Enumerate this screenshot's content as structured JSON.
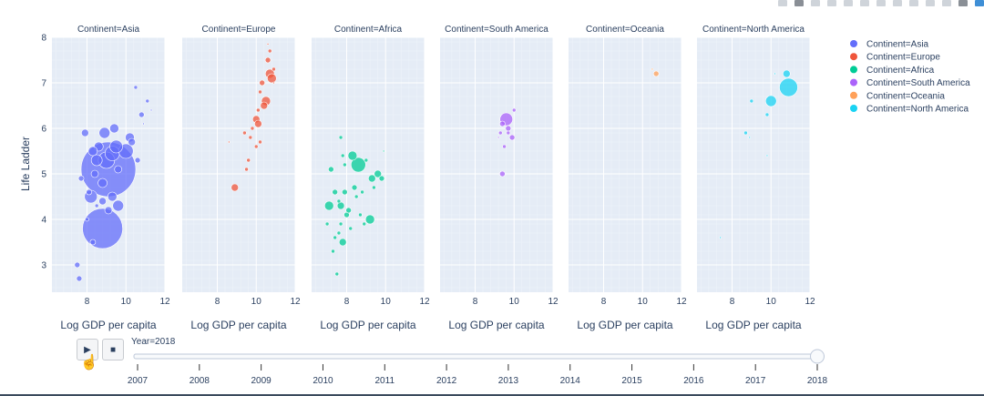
{
  "modebar": {
    "icons": [
      "camera-icon",
      "zoom-icon",
      "pan-icon",
      "select-icon",
      "lasso-icon",
      "zoom-in-icon",
      "zoom-out-icon",
      "autoscale-icon",
      "reset-icon",
      "spike-icon",
      "hover-closest-icon",
      "hover-compare-icon",
      "plotly-logo-icon"
    ]
  },
  "player": {
    "play_label": "▶",
    "stop_label": "■",
    "current_label": "Year=2018"
  },
  "chart_data": {
    "type": "scatter",
    "subtype": "faceted-bubble",
    "xlabel": "Log GDP per capita",
    "ylabel": "Life Ladder",
    "xlim": [
      6.2,
      12
    ],
    "ylim": [
      2.4,
      8
    ],
    "xticks": [
      8,
      10,
      12
    ],
    "yticks": [
      3,
      4,
      5,
      6,
      7,
      8
    ],
    "legend_position": "right",
    "grid": true,
    "facets": [
      {
        "name": "Asia",
        "title": "Continent=Asia",
        "color": "#636efa",
        "points": [
          [
            9.1,
            5.1,
            30
          ],
          [
            8.8,
            3.8,
            22
          ],
          [
            8.2,
            4.5,
            7
          ],
          [
            8.5,
            5.3,
            6
          ],
          [
            9.0,
            5.3,
            9
          ],
          [
            9.3,
            5.45,
            8
          ],
          [
            9.5,
            5.6,
            7
          ],
          [
            10.0,
            5.5,
            8
          ],
          [
            8.6,
            5.6,
            5
          ],
          [
            8.9,
            5.9,
            6
          ],
          [
            9.4,
            6.0,
            5
          ],
          [
            10.2,
            5.8,
            5
          ],
          [
            7.9,
            5.9,
            4
          ],
          [
            8.3,
            5.5,
            5
          ],
          [
            8.4,
            5.0,
            4
          ],
          [
            8.8,
            4.8,
            5
          ],
          [
            9.3,
            4.5,
            5
          ],
          [
            9.6,
            4.3,
            6
          ],
          [
            9.1,
            4.2,
            4
          ],
          [
            8.1,
            4.6,
            3
          ],
          [
            7.7,
            4.9,
            3
          ],
          [
            8.8,
            4.4,
            4
          ],
          [
            10.8,
            6.3,
            3
          ],
          [
            11.1,
            6.6,
            2
          ],
          [
            10.5,
            6.9,
            2
          ],
          [
            10.3,
            5.7,
            4
          ],
          [
            10.6,
            5.3,
            3
          ],
          [
            8.3,
            3.5,
            3
          ],
          [
            7.5,
            3.0,
            3
          ],
          [
            7.6,
            2.7,
            3
          ],
          [
            9.6,
            5.1,
            4
          ],
          [
            8.0,
            4.0,
            2
          ],
          [
            8.5,
            4.3,
            2
          ],
          [
            11.3,
            6.4,
            1
          ],
          [
            10.9,
            6.1,
            1
          ]
        ]
      },
      {
        "name": "Europe",
        "title": "Continent=Europe",
        "color": "#ef553b",
        "points": [
          [
            10.7,
            7.2,
            5
          ],
          [
            10.8,
            7.1,
            5
          ],
          [
            10.5,
            6.6,
            5
          ],
          [
            10.4,
            6.5,
            4
          ],
          [
            10.0,
            6.2,
            4
          ],
          [
            10.1,
            6.1,
            4
          ],
          [
            10.3,
            7.0,
            3
          ],
          [
            10.6,
            7.5,
            3
          ],
          [
            10.7,
            7.7,
            2
          ],
          [
            10.9,
            7.3,
            2
          ],
          [
            10.2,
            6.8,
            2
          ],
          [
            9.8,
            6.0,
            2
          ],
          [
            9.7,
            5.8,
            2
          ],
          [
            9.6,
            5.3,
            2
          ],
          [
            9.5,
            5.1,
            2
          ],
          [
            10.0,
            5.6,
            2
          ],
          [
            8.9,
            4.7,
            4
          ],
          [
            9.4,
            5.9,
            2
          ],
          [
            10.1,
            6.4,
            2
          ],
          [
            10.6,
            7.85,
            1
          ],
          [
            8.6,
            5.7,
            1
          ],
          [
            10.9,
            7.0,
            1
          ],
          [
            10.2,
            5.7,
            2
          ]
        ]
      },
      {
        "name": "Africa",
        "title": "Continent=Africa",
        "color": "#00cc96",
        "points": [
          [
            8.6,
            5.2,
            8
          ],
          [
            7.1,
            4.3,
            5
          ],
          [
            8.3,
            5.4,
            5
          ],
          [
            7.7,
            4.3,
            4
          ],
          [
            7.8,
            3.5,
            4
          ],
          [
            9.2,
            4.0,
            5
          ],
          [
            9.3,
            4.9,
            4
          ],
          [
            7.9,
            4.6,
            3
          ],
          [
            8.0,
            4.1,
            3
          ],
          [
            7.4,
            4.6,
            3
          ],
          [
            7.2,
            5.1,
            3
          ],
          [
            9.6,
            5.0,
            4
          ],
          [
            9.8,
            4.9,
            3
          ],
          [
            8.4,
            4.7,
            3
          ],
          [
            8.1,
            4.2,
            3
          ],
          [
            7.7,
            3.9,
            2
          ],
          [
            7.6,
            3.7,
            2
          ],
          [
            7.3,
            3.3,
            2
          ],
          [
            7.5,
            2.8,
            2
          ],
          [
            8.9,
            3.9,
            2
          ],
          [
            9.4,
            4.7,
            2
          ],
          [
            7.9,
            5.2,
            2
          ],
          [
            8.5,
            4.5,
            2
          ],
          [
            7.6,
            4.4,
            2
          ],
          [
            8.2,
            3.8,
            2
          ],
          [
            7.4,
            3.6,
            2
          ],
          [
            9.0,
            5.3,
            2
          ],
          [
            7.7,
            5.8,
            2
          ],
          [
            8.8,
            4.6,
            2
          ],
          [
            9.9,
            5.5,
            1
          ],
          [
            7.0,
            3.9,
            2
          ],
          [
            8.7,
            4.1,
            2
          ],
          [
            7.8,
            5.4,
            2
          ]
        ]
      },
      {
        "name": "South America",
        "title": "Continent=South America",
        "color": "#ab63fa",
        "points": [
          [
            9.6,
            6.2,
            7
          ],
          [
            9.7,
            6.0,
            3
          ],
          [
            9.4,
            6.1,
            3
          ],
          [
            9.9,
            5.8,
            3
          ],
          [
            9.3,
            5.9,
            2
          ],
          [
            10.0,
            6.4,
            2
          ],
          [
            9.5,
            5.6,
            2
          ],
          [
            9.7,
            5.9,
            2
          ],
          [
            9.4,
            5.0,
            3
          ],
          [
            9.2,
            5.8,
            1
          ]
        ]
      },
      {
        "name": "Oceania",
        "title": "Continent=Oceania",
        "color": "#ffa15a",
        "points": [
          [
            10.7,
            7.2,
            3
          ],
          [
            10.5,
            7.3,
            1
          ]
        ]
      },
      {
        "name": "North America",
        "title": "Continent=North America",
        "color": "#19d3f3",
        "points": [
          [
            10.9,
            6.9,
            10
          ],
          [
            10.0,
            6.6,
            6
          ],
          [
            10.8,
            7.2,
            4
          ],
          [
            9.0,
            6.6,
            2
          ],
          [
            8.7,
            5.9,
            2
          ],
          [
            8.9,
            5.8,
            1
          ],
          [
            9.8,
            5.4,
            1
          ],
          [
            7.4,
            3.6,
            1
          ],
          [
            9.8,
            6.3,
            2
          ],
          [
            10.2,
            7.2,
            1
          ]
        ]
      }
    ],
    "slider": {
      "years": [
        "2007",
        "2008",
        "2009",
        "2010",
        "2011",
        "2012",
        "2013",
        "2014",
        "2015",
        "2016",
        "2017",
        "2018"
      ],
      "current": "2018"
    }
  }
}
